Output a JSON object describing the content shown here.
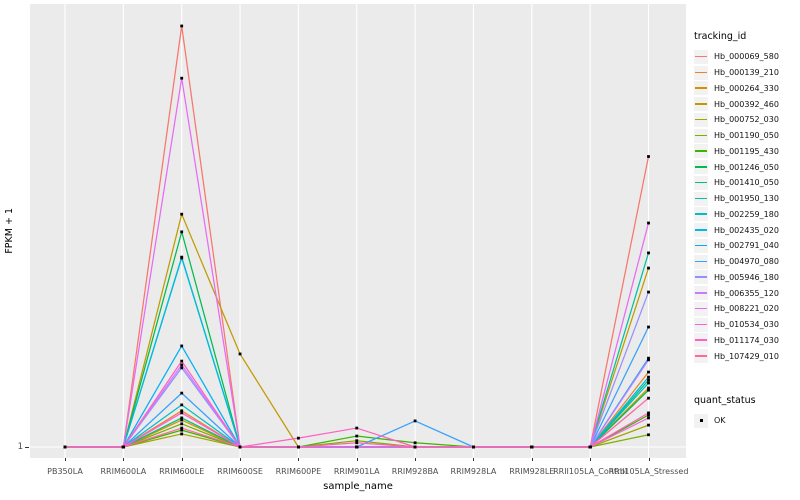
{
  "axes": {
    "x": {
      "title": "sample_name"
    },
    "y": {
      "title": "FPKM + 1",
      "tick_label": "1"
    }
  },
  "legend": {
    "tracking_title": "tracking_id",
    "quant_title": "quant_status",
    "quant_item_label": "OK"
  },
  "style": {
    "panel_background": "#EBEBEB",
    "gridline_color": "#FFFFFF",
    "point_color": "#000000",
    "axis_text_color": "#4D4D4D"
  },
  "chart_data": {
    "type": "line",
    "title": "",
    "xlabel": "sample_name",
    "ylabel": "FPKM + 1",
    "legend_position": "right",
    "grid": "major-only",
    "point_marker": {
      "shape": "square",
      "color": "#000000",
      "legend_label": "OK",
      "legend_title": "quant_status"
    },
    "y_axis_note": "only tick shown is 1 (baseline); series values below are relative heights above baseline, 1.0 = tallest peak",
    "visible_y_ticks": [
      "1"
    ],
    "x_categories": [
      "PB350LA",
      "RRIM600LA",
      "RRIM600LE",
      "RRIM600SE",
      "RRIM600PE",
      "RRIM901LA",
      "RRIM928BA",
      "RRIM928LA",
      "RRIM928LE",
      "RRII105LA_Control",
      "RRII105LA_Stressed"
    ],
    "series": [
      {
        "name": "Hb_000069_580",
        "color": "#F8766D",
        "values": [
          0,
          0,
          1,
          0,
          0,
          0,
          0,
          0,
          0,
          0,
          0.69
        ]
      },
      {
        "name": "Hb_000139_210",
        "color": "#EA8331",
        "values": [
          0,
          0,
          0.086,
          0,
          0,
          0,
          0,
          0,
          0,
          0,
          0.178
        ]
      },
      {
        "name": "Hb_000264_330",
        "color": "#D89000",
        "values": [
          0,
          0,
          0.064,
          0,
          0,
          0,
          0,
          0,
          0,
          0,
          0.14
        ]
      },
      {
        "name": "Hb_000392_460",
        "color": "#C09B00",
        "values": [
          0,
          0,
          0.553,
          0.221,
          0,
          0,
          0,
          0,
          0,
          0,
          0.425
        ]
      },
      {
        "name": "Hb_000752_030",
        "color": "#A3A500",
        "values": [
          0,
          0,
          0.031,
          0,
          0,
          0,
          0,
          0,
          0,
          0,
          0.052
        ]
      },
      {
        "name": "Hb_001190_050",
        "color": "#7CAE00",
        "values": [
          0,
          0,
          0.055,
          0,
          0,
          0.015,
          0,
          0,
          0,
          0,
          0.029
        ]
      },
      {
        "name": "Hb_001195_430",
        "color": "#39B600",
        "values": [
          0,
          0,
          0.04,
          0,
          0,
          0.026,
          0.01,
          0,
          0,
          0,
          0.076
        ]
      },
      {
        "name": "Hb_001246_050",
        "color": "#00BB4E",
        "values": [
          0,
          0,
          0.511,
          0,
          0,
          0,
          0,
          0,
          0,
          0,
          0.135
        ]
      },
      {
        "name": "Hb_001410_050",
        "color": "#00BF7D",
        "values": [
          0,
          0,
          0.069,
          0,
          0,
          0,
          0,
          0,
          0,
          0,
          0.159
        ]
      },
      {
        "name": "Hb_001950_130",
        "color": "#00C1A3",
        "values": [
          0,
          0,
          0.451,
          0,
          0,
          0,
          0,
          0,
          0,
          0,
          0.461
        ]
      },
      {
        "name": "Hb_002259_180",
        "color": "#00BFC4",
        "values": [
          0,
          0,
          0.1,
          0,
          0,
          0,
          0,
          0,
          0,
          0,
          0.152
        ]
      },
      {
        "name": "Hb_002435_020",
        "color": "#00BAE0",
        "values": [
          0,
          0,
          0.449,
          0,
          0,
          0,
          0,
          0,
          0,
          0,
          0.166
        ]
      },
      {
        "name": "Hb_002791_040",
        "color": "#00B0F6",
        "values": [
          0,
          0,
          0.24,
          0,
          0,
          0,
          0,
          0,
          0,
          0,
          0.211
        ]
      },
      {
        "name": "Hb_004970_080",
        "color": "#35A2FF",
        "values": [
          0,
          0,
          0.128,
          0,
          0,
          0,
          0.062,
          0,
          0,
          0,
          0.285
        ]
      },
      {
        "name": "Hb_005946_180",
        "color": "#9590FF",
        "values": [
          0,
          0,
          0.188,
          0,
          0,
          0,
          0,
          0,
          0,
          0,
          0.368
        ]
      },
      {
        "name": "Hb_006355_120",
        "color": "#C77CFF",
        "values": [
          0,
          0,
          0.195,
          0,
          0,
          0,
          0,
          0,
          0,
          0,
          0.207
        ]
      },
      {
        "name": "Hb_008221_020",
        "color": "#E76BF3",
        "values": [
          0,
          0,
          0.876,
          0,
          0,
          0,
          0,
          0,
          0,
          0,
          0.532
        ]
      },
      {
        "name": "Hb_010534_030",
        "color": "#FA62DB",
        "values": [
          0,
          0,
          0.081,
          0,
          0,
          0,
          0,
          0,
          0,
          0,
          0.069
        ]
      },
      {
        "name": "Hb_011174_030",
        "color": "#FF61C3",
        "values": [
          0,
          0,
          0.204,
          0,
          0.021,
          0.045,
          0,
          0,
          0,
          0,
          0.081
        ]
      },
      {
        "name": "Hb_107429_010",
        "color": "#FF67A4",
        "values": [
          0,
          0,
          0.045,
          0,
          0,
          0.01,
          0,
          0,
          0,
          0,
          0.116
        ]
      }
    ]
  }
}
